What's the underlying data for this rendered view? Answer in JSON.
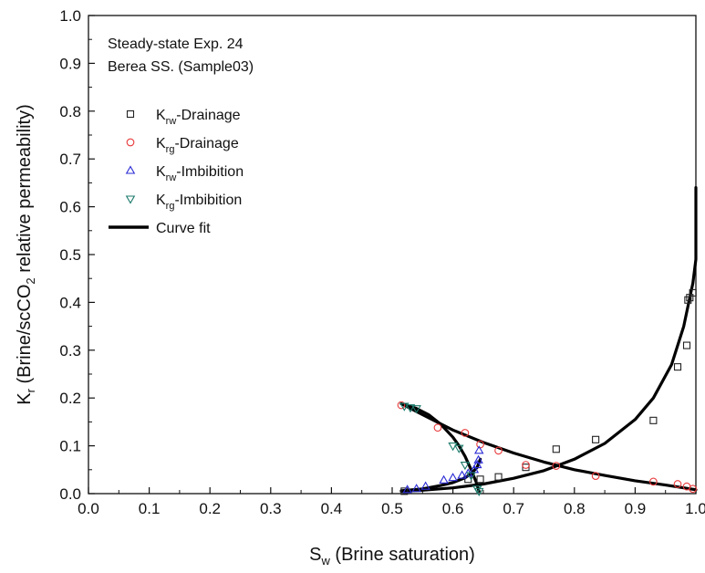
{
  "chart_data": {
    "type": "scatter",
    "annotation": [
      "Steady-state Exp. 24",
      "Berea SS. (Sample03)"
    ],
    "xlabel": {
      "main": "S",
      "sub": "w",
      "rest": " (Brine saturation)"
    },
    "ylabel": {
      "k": "K",
      "ksub": "r",
      "mid": " (Brine/scCO",
      "co2sub": "2",
      "rest": " relative permeability)"
    },
    "xlim": [
      0.0,
      1.0
    ],
    "ylim": [
      0.0,
      1.0
    ],
    "xticks": [
      "0.0",
      "0.1",
      "0.2",
      "0.3",
      "0.4",
      "0.5",
      "0.6",
      "0.7",
      "0.8",
      "0.9",
      "1.0"
    ],
    "yticks": [
      "0.0",
      "0.1",
      "0.2",
      "0.3",
      "0.4",
      "0.5",
      "0.6",
      "0.7",
      "0.8",
      "0.9",
      "1.0"
    ],
    "grid": false,
    "legend_position": "top-left",
    "series": [
      {
        "name": "K",
        "sub": "rw",
        "suffix": "-Drainage",
        "marker": "square",
        "color": "#222222",
        "points": [
          [
            0.52,
            0.005
          ],
          [
            0.625,
            0.03
          ],
          [
            0.645,
            0.03
          ],
          [
            0.675,
            0.035
          ],
          [
            0.72,
            0.055
          ],
          [
            0.77,
            0.093
          ],
          [
            0.835,
            0.113
          ],
          [
            0.93,
            0.153
          ],
          [
            0.97,
            0.265
          ],
          [
            0.985,
            0.31
          ],
          [
            0.987,
            0.405
          ],
          [
            0.99,
            0.41
          ],
          [
            0.995,
            0.42
          ]
        ]
      },
      {
        "name": "K",
        "sub": "rg",
        "suffix": "-Drainage",
        "marker": "circle",
        "color": "#e8393a",
        "points": [
          [
            0.515,
            0.185
          ],
          [
            0.575,
            0.138
          ],
          [
            0.62,
            0.127
          ],
          [
            0.645,
            0.103
          ],
          [
            0.675,
            0.09
          ],
          [
            0.72,
            0.06
          ],
          [
            0.77,
            0.058
          ],
          [
            0.835,
            0.037
          ],
          [
            0.93,
            0.025
          ],
          [
            0.97,
            0.02
          ],
          [
            0.985,
            0.015
          ],
          [
            0.995,
            0.01
          ]
        ]
      },
      {
        "name": "K",
        "sub": "rw",
        "suffix": "-Imbibition",
        "marker": "triangle-up",
        "color": "#2b2bd6",
        "points": [
          [
            0.525,
            0.008
          ],
          [
            0.54,
            0.01
          ],
          [
            0.555,
            0.015
          ],
          [
            0.585,
            0.028
          ],
          [
            0.6,
            0.033
          ],
          [
            0.615,
            0.038
          ],
          [
            0.625,
            0.042
          ],
          [
            0.635,
            0.05
          ],
          [
            0.64,
            0.06
          ],
          [
            0.642,
            0.07
          ],
          [
            0.643,
            0.09
          ]
        ]
      },
      {
        "name": "K",
        "sub": "rg",
        "suffix": "-Imbibition",
        "marker": "triangle-down",
        "color": "#1a7a6a",
        "points": [
          [
            0.52,
            0.183
          ],
          [
            0.53,
            0.18
          ],
          [
            0.54,
            0.178
          ],
          [
            0.6,
            0.1
          ],
          [
            0.61,
            0.095
          ],
          [
            0.62,
            0.06
          ],
          [
            0.63,
            0.038
          ],
          [
            0.64,
            0.01
          ],
          [
            0.643,
            0.005
          ]
        ]
      }
    ],
    "fit_label": "Curve fit",
    "fit_curves": [
      {
        "points": [
          [
            0.515,
            0.005
          ],
          [
            0.55,
            0.007
          ],
          [
            0.6,
            0.012
          ],
          [
            0.65,
            0.02
          ],
          [
            0.7,
            0.032
          ],
          [
            0.75,
            0.048
          ],
          [
            0.8,
            0.072
          ],
          [
            0.85,
            0.105
          ],
          [
            0.9,
            0.155
          ],
          [
            0.93,
            0.2
          ],
          [
            0.96,
            0.27
          ],
          [
            0.98,
            0.35
          ],
          [
            0.99,
            0.41
          ],
          [
            0.995,
            0.44
          ],
          [
            1.0,
            0.49
          ],
          [
            1.0,
            0.64
          ]
        ]
      },
      {
        "points": [
          [
            0.515,
            0.188
          ],
          [
            0.55,
            0.165
          ],
          [
            0.6,
            0.133
          ],
          [
            0.65,
            0.107
          ],
          [
            0.7,
            0.085
          ],
          [
            0.75,
            0.066
          ],
          [
            0.8,
            0.05
          ],
          [
            0.85,
            0.038
          ],
          [
            0.9,
            0.027
          ],
          [
            0.95,
            0.018
          ],
          [
            0.98,
            0.012
          ],
          [
            1.0,
            0.008
          ]
        ]
      },
      {
        "points": [
          [
            0.515,
            0.006
          ],
          [
            0.55,
            0.01
          ],
          [
            0.58,
            0.017
          ],
          [
            0.6,
            0.023
          ],
          [
            0.62,
            0.033
          ],
          [
            0.63,
            0.042
          ],
          [
            0.64,
            0.055
          ],
          [
            0.645,
            0.072
          ]
        ]
      },
      {
        "points": [
          [
            0.515,
            0.188
          ],
          [
            0.54,
            0.178
          ],
          [
            0.56,
            0.165
          ],
          [
            0.58,
            0.145
          ],
          [
            0.6,
            0.118
          ],
          [
            0.61,
            0.1
          ],
          [
            0.62,
            0.078
          ],
          [
            0.63,
            0.05
          ],
          [
            0.638,
            0.025
          ],
          [
            0.643,
            0.005
          ]
        ]
      }
    ]
  }
}
